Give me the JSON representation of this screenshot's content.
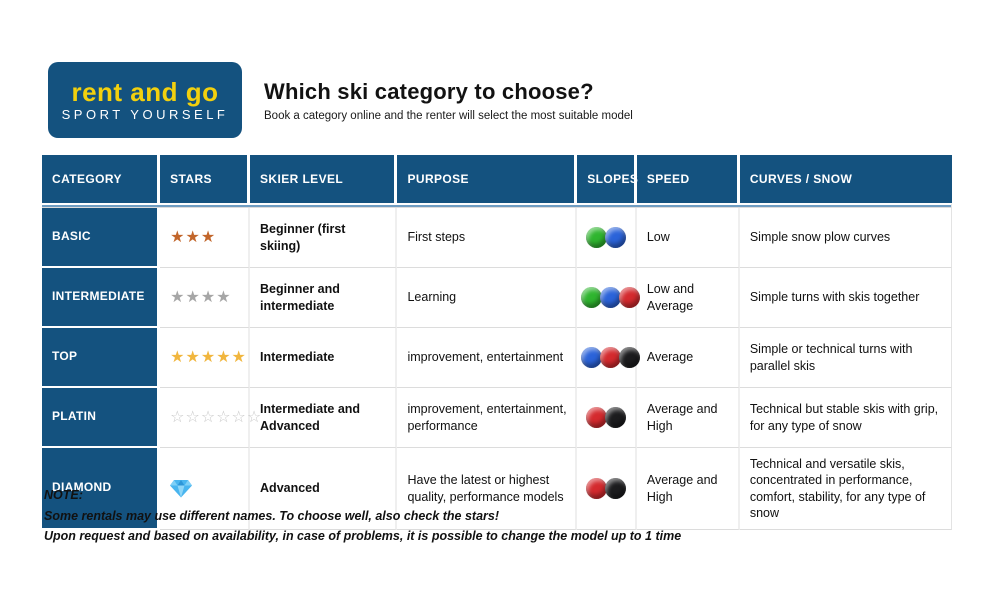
{
  "logo": {
    "brand": "rent and go",
    "tagline": "SPORT YOURSELF",
    "bg_color": "#14527f",
    "brand_color": "#f2d00e",
    "tagline_color": "#ffffff"
  },
  "heading": {
    "title": "Which ski category to choose?",
    "subtitle": "Book a category online and the renter will select the most suitable model"
  },
  "table": {
    "header_bg": "#14527f",
    "columns": [
      "CATEGORY",
      "STARS",
      "SKIER LEVEL",
      "PURPOSE",
      "SLOPES",
      "SPEED",
      "CURVES / SNOW"
    ],
    "slope_colors": {
      "green": "#2fb52f",
      "blue": "#2b63d9",
      "red": "#d42a2e",
      "black": "#1c1c1e"
    },
    "rows": [
      {
        "category": "BASIC",
        "stars": {
          "type": "stars",
          "style": "filled",
          "count": 3,
          "color": "#c2662b"
        },
        "skier_level": "Beginner (first skiing)",
        "purpose": "First steps",
        "slopes": [
          "green",
          "blue"
        ],
        "speed": "Low",
        "curves": "Simple snow plow curves"
      },
      {
        "category": "INTERMEDIATE",
        "stars": {
          "type": "stars",
          "style": "filled",
          "count": 4,
          "color": "#a6a6a6"
        },
        "skier_level": "Beginner and intermediate",
        "purpose": "Learning",
        "slopes": [
          "green",
          "blue",
          "red"
        ],
        "speed": "Low and Average",
        "curves": "Simple turns with skis together"
      },
      {
        "category": "TOP",
        "stars": {
          "type": "stars",
          "style": "filled",
          "count": 5,
          "color": "#f1b63e"
        },
        "skier_level": "Intermediate",
        "purpose": "improvement, entertainment",
        "slopes": [
          "blue",
          "red",
          "black"
        ],
        "speed": "Average",
        "curves": "Simple or technical turns with parallel skis"
      },
      {
        "category": "PLATIN",
        "stars": {
          "type": "stars",
          "style": "outline",
          "count": 6,
          "color": "#c9c9c9"
        },
        "skier_level": "Intermediate and Advanced",
        "purpose": "improvement, entertainment, performance",
        "slopes": [
          "red",
          "black"
        ],
        "speed": "Average and High",
        "curves": "Technical but stable skis with grip, for any type of snow"
      },
      {
        "category": "DIAMOND",
        "stars": {
          "type": "diamond"
        },
        "skier_level": "Advanced",
        "purpose": "Have the latest or highest quality, performance models",
        "slopes": [
          "red",
          "black"
        ],
        "speed": "Average and High",
        "curves": "Technical and versatile skis, concentrated in performance, comfort, stability, for any type of snow"
      }
    ]
  },
  "note": {
    "label": "NOTE:",
    "line1": "Some rentals may use different names. To choose well, also check the stars!",
    "line2": "Upon request and based on availability, in case of problems, it is possible to change the model up to 1 time"
  }
}
